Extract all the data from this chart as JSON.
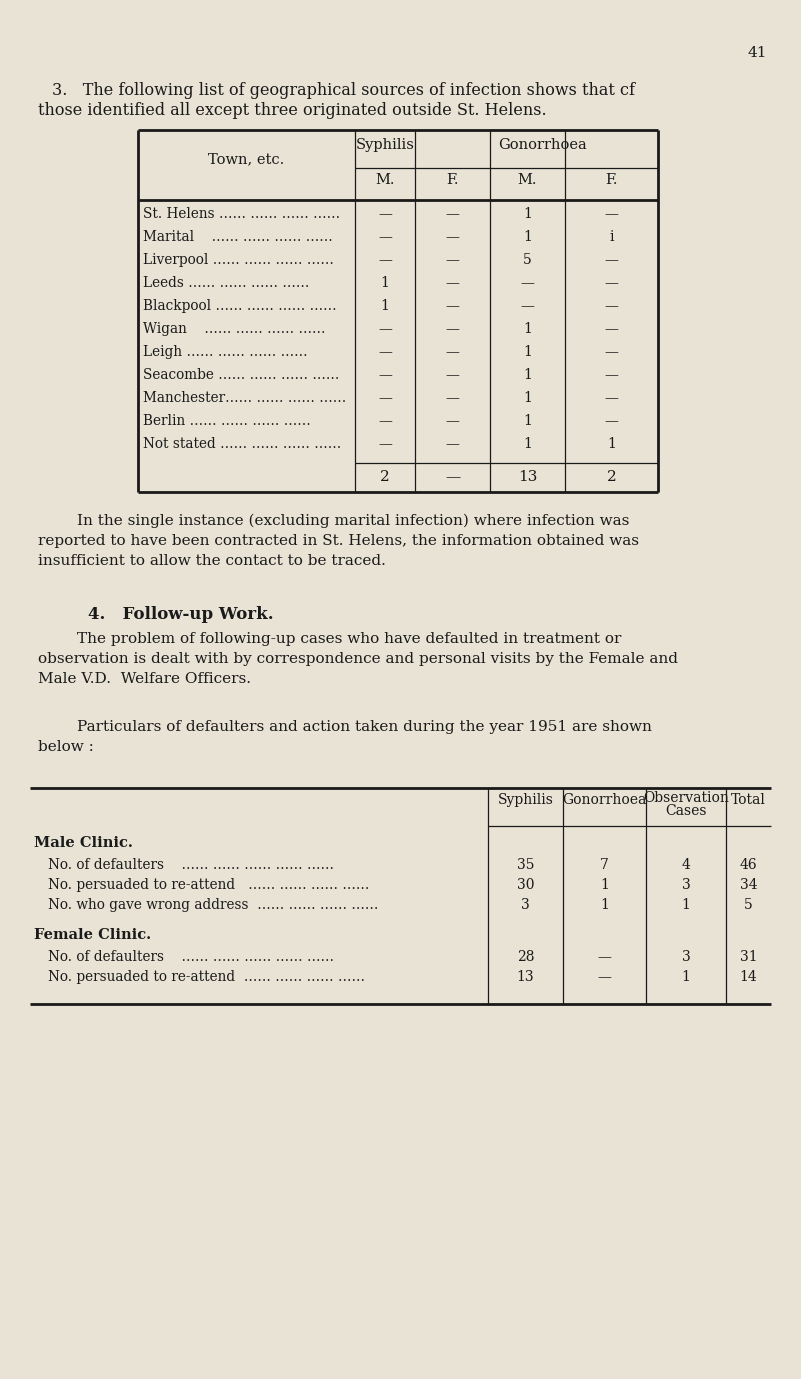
{
  "bg_color": "#e8e3d5",
  "text_color": "#1a1a1a",
  "page_number": "41",
  "section3_line1": "3.   The following list of geographical sources of infection shows that cf",
  "section3_line2": "those identified all except three originated outside St. Helens.",
  "table1_rows": [
    [
      "St. Helens …… …… …… ……",
      "—",
      "—",
      "1",
      "—"
    ],
    [
      "Marital    …… …… …… ……",
      "—",
      "—",
      "1",
      "i"
    ],
    [
      "Liverpool …… …… …… ……",
      "—",
      "—",
      "5",
      "—"
    ],
    [
      "Leeds …… …… …… ……",
      "1",
      "—",
      "—",
      "—"
    ],
    [
      "Blackpool …… …… …… ……",
      "1",
      "—",
      "—",
      "—"
    ],
    [
      "Wigan    …… …… …… ……",
      "—",
      "—",
      "1",
      "—"
    ],
    [
      "Leigh …… …… …… ……",
      "—",
      "—",
      "1",
      "—"
    ],
    [
      "Seacombe …… …… …… ……",
      "—",
      "—",
      "1",
      "—"
    ],
    [
      "Manchester…… …… …… ……",
      "—",
      "—",
      "1",
      "—"
    ],
    [
      "Berlin …… …… …… ……",
      "—",
      "—",
      "1",
      "—"
    ],
    [
      "Not stated …… …… …… ……",
      "—",
      "—",
      "1",
      "1"
    ]
  ],
  "table1_total": [
    "2",
    "—",
    "13",
    "2"
  ],
  "para1_lines": [
    "        In the single instance (excluding marital infection) where infection was",
    "reported to have been contracted in St. Helens, the information obtained was",
    "insufficient to allow the contact to be traced."
  ],
  "section4_heading": "4.   Follow-up Work.",
  "para2_lines": [
    "        The problem of following-up cases who have defaulted in treatment or",
    "observation is dealt with by correspondence and personal visits by the Female and",
    "Male V.D.  Welfare Officers."
  ],
  "para3_lines": [
    "        Particulars of defaulters and action taken during the year 1951 are shown",
    "below :"
  ],
  "table2_col_headers": [
    "Syphilis",
    "Gonorrhoea",
    "Observation\nCases",
    "Total"
  ],
  "table2_sections": [
    {
      "label": "Male Clinic.",
      "rows": [
        [
          "No. of defaulters    …… …… …… …… ……",
          "35",
          "7",
          "4",
          "46"
        ],
        [
          "No. persuaded to re-attend   …… …… …… ……",
          "30",
          "1",
          "3",
          "34"
        ],
        [
          "No. who gave wrong address  …… …… …… ……",
          "3",
          "1",
          "1",
          "5"
        ]
      ]
    },
    {
      "label": "Female Clinic.",
      "rows": [
        [
          "No. of defaulters    …… …… …… …… ……",
          "28",
          "—",
          "3",
          "31"
        ],
        [
          "No. persuaded to re-attend  …… …… …… ……",
          "13",
          "—",
          "1",
          "14"
        ]
      ]
    }
  ]
}
